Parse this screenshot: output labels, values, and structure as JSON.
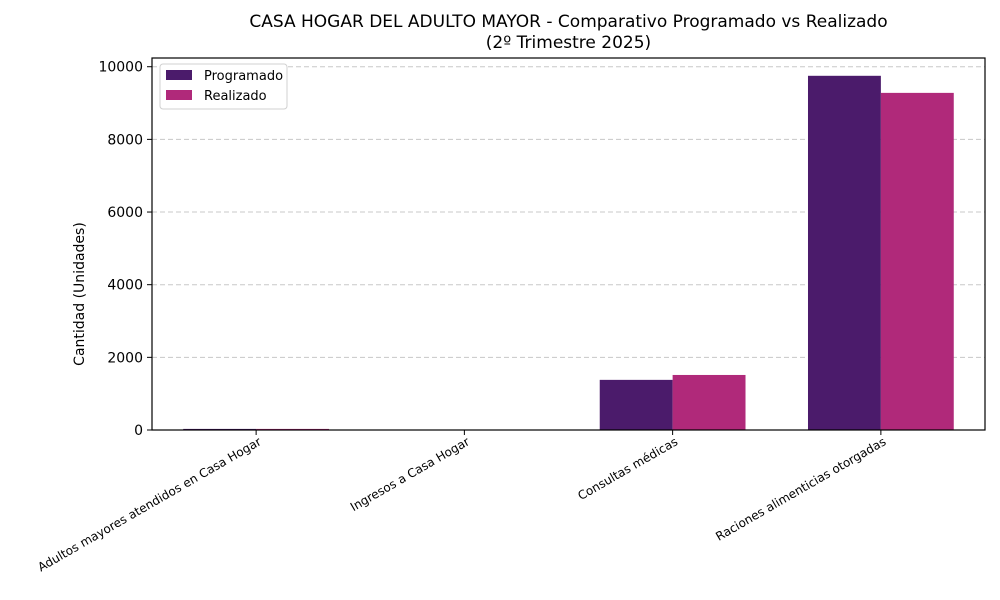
{
  "chart_data": {
    "type": "bar",
    "title": "CASA HOGAR DEL ADULTO MAYOR - Comparativo Programado vs Realizado",
    "subtitle": "(2º Trimestre 2025)",
    "xlabel": "",
    "ylabel": "Cantidad (Unidades)",
    "categories": [
      "Adultos mayores atendidos en Casa Hogar",
      "Ingresos a Casa Hogar",
      "Consultas médicas",
      "Raciones alimenticias otorgadas"
    ],
    "series": [
      {
        "name": "Programado",
        "values": [
          30,
          5,
          1380,
          9750
        ],
        "color": "#4b1b6b"
      },
      {
        "name": "Realizado",
        "values": [
          30,
          5,
          1515,
          9280
        ],
        "color": "#b0297a"
      }
    ],
    "ylim": [
      0,
      10240
    ],
    "yticks": [
      0,
      2000,
      4000,
      6000,
      8000,
      10000
    ],
    "grid": "y-dashed",
    "legend": "top-left"
  }
}
